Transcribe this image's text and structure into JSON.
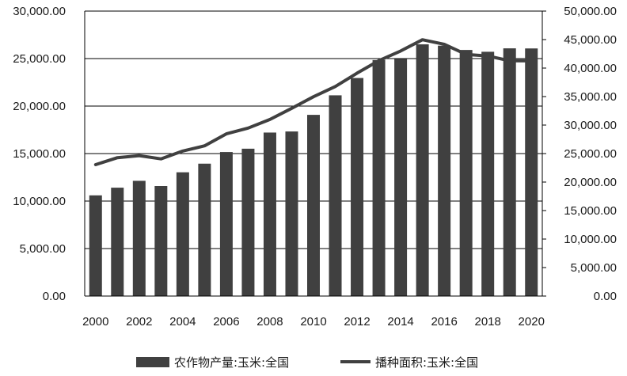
{
  "chart_data": {
    "type": "bar",
    "categories": [
      "2000",
      "2001",
      "2002",
      "2003",
      "2004",
      "2005",
      "2006",
      "2007",
      "2008",
      "2009",
      "2010",
      "2011",
      "2012",
      "2013",
      "2014",
      "2015",
      "2016",
      "2017",
      "2018",
      "2019",
      "2020"
    ],
    "x_tick_labels": [
      "2000",
      "2002",
      "2004",
      "2006",
      "2008",
      "2010",
      "2012",
      "2014",
      "2016",
      "2018",
      "2020"
    ],
    "series": [
      {
        "name": "农作物产量:玉米:全国",
        "type": "bar",
        "axis": "left",
        "color": "#404040",
        "values": [
          10600,
          11409,
          12131,
          11583,
          13029,
          13937,
          15160,
          15512,
          17212,
          17326,
          19075,
          21132,
          22956,
          24845,
          24976,
          26499,
          26361,
          25907,
          25717,
          26078,
          26067
        ]
      },
      {
        "name": "播种面积:玉米:全国",
        "type": "line",
        "axis": "right",
        "color": "#404040",
        "values": [
          23056,
          24282,
          24634,
          24068,
          25446,
          26358,
          28463,
          29478,
          30981,
          32948,
          34977,
          36767,
          39109,
          41299,
          42997,
          44968,
          44178,
          42399,
          42130,
          41284,
          41264
        ]
      }
    ],
    "y_left": {
      "ylim": [
        0,
        30000
      ],
      "ticks": [
        "0.00",
        "5,000.00",
        "10,000.00",
        "15,000.00",
        "20,000.00",
        "25,000.00",
        "30,000.00"
      ]
    },
    "y_right": {
      "ylim": [
        0,
        50000
      ],
      "ticks": [
        "0.00",
        "5,000.00",
        "10,000.00",
        "15,000.00",
        "20,000.00",
        "25,000.00",
        "30,000.00",
        "35,000.00",
        "40,000.00",
        "45,000.00",
        "50,000.00"
      ]
    },
    "grid": "horizontal",
    "legend_position": "bottom",
    "title": "",
    "xlabel": "",
    "ylabel": ""
  }
}
